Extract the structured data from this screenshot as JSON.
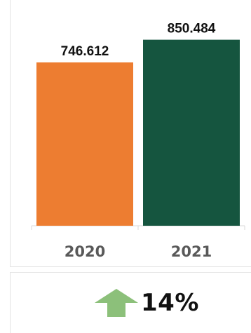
{
  "chart_data": {
    "type": "bar",
    "categories": [
      "2020",
      "2021"
    ],
    "values": [
      746.612,
      850.484
    ],
    "value_labels": [
      "746.612",
      "850.484"
    ],
    "colors": [
      "#ED7D31",
      "#15553F"
    ],
    "title": "",
    "xlabel": "",
    "ylabel": "",
    "grid": false,
    "legend": "none"
  },
  "growth": {
    "direction": "up",
    "arrow_icon": "arrow-up-icon",
    "arrow_color": "#8CC07A",
    "value": "14%"
  }
}
